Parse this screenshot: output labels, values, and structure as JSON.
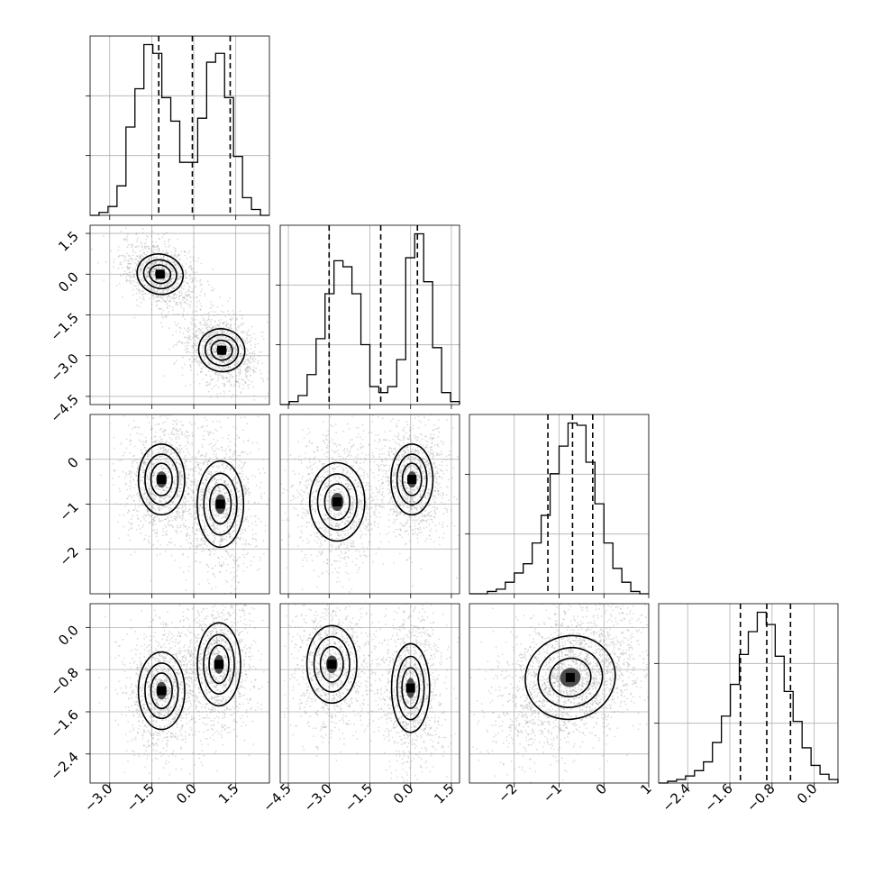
{
  "chart_data": {
    "type": "corner",
    "params": [
      {
        "range": [
          -3.7,
          2.7
        ],
        "ticks": [
          -3.0,
          -1.5,
          0.0,
          1.5
        ],
        "tick_labels": [
          "−3.0",
          "−1.5",
          "0.0",
          "1.5"
        ],
        "quantiles": [
          -1.25,
          -0.05,
          1.3
        ],
        "hist": {
          "edges": [
            -3.7,
            -3.38,
            -3.06,
            -2.74,
            -2.42,
            -2.1,
            -1.78,
            -1.46,
            -1.14,
            -0.82,
            -0.5,
            -0.18,
            0.14,
            0.46,
            0.78,
            1.1,
            1.42,
            1.74,
            2.06,
            2.38,
            2.7
          ],
          "counts": [
            0,
            1,
            3,
            10,
            30,
            43,
            58,
            55,
            40,
            32,
            18,
            18,
            33,
            52,
            55,
            40,
            20,
            6,
            2,
            0
          ]
        }
      },
      {
        "range": [
          -4.8,
          1.8
        ],
        "ticks": [
          -4.5,
          -3.0,
          -1.5,
          0.0,
          1.5
        ],
        "tick_labels": [
          "−4.5",
          "−3.0",
          "−1.5",
          "0.0",
          "1.5"
        ],
        "quantiles": [
          -3.0,
          -1.1,
          0.25
        ],
        "hist": {
          "edges": [
            -4.8,
            -4.47,
            -4.14,
            -3.81,
            -3.48,
            -3.15,
            -2.82,
            -2.49,
            -2.16,
            -1.83,
            -1.5,
            -1.17,
            -0.84,
            -0.51,
            -0.18,
            0.15,
            0.48,
            0.81,
            1.14,
            1.47,
            1.8
          ],
          "counts": [
            0,
            1,
            3,
            10,
            22,
            37,
            48,
            46,
            37,
            20,
            6,
            4,
            6,
            15,
            49,
            57,
            41,
            19,
            4,
            1
          ]
        }
      },
      {
        "range": [
          -3.0,
          1.0
        ],
        "ticks": [
          -2,
          -1,
          0
        ],
        "tick_labels": [
          "−2",
          "−1",
          "0"
        ],
        "x_ticks": [
          -2,
          -1,
          0,
          1
        ],
        "x_tick_labels": [
          "−2",
          "−1",
          "0",
          "1"
        ],
        "quantiles": [
          -1.25,
          -0.7,
          -0.25
        ],
        "hist": {
          "edges": [
            -3.0,
            -2.8,
            -2.6,
            -2.4,
            -2.2,
            -2.0,
            -1.8,
            -1.6,
            -1.4,
            -1.2,
            -1.0,
            -0.8,
            -0.6,
            -0.4,
            -0.2,
            0.0,
            0.2,
            0.4,
            0.6,
            0.8,
            1.0
          ],
          "counts": [
            0,
            0,
            1,
            2,
            5,
            9,
            13,
            22,
            34,
            52,
            64,
            74,
            73,
            57,
            39,
            22,
            11,
            5,
            1,
            0
          ]
        }
      },
      {
        "range": [
          -2.95,
          0.45
        ],
        "ticks": [
          -2.4,
          -1.6,
          -0.8,
          0.0
        ],
        "tick_labels": [
          "−2.4",
          "−1.6",
          "−0.8",
          "0.0"
        ],
        "quantiles": [
          -1.4,
          -0.9,
          -0.45
        ],
        "hist": {
          "edges": [
            -2.95,
            -2.78,
            -2.61,
            -2.44,
            -2.27,
            -2.1,
            -1.93,
            -1.76,
            -1.59,
            -1.42,
            -1.25,
            -1.08,
            -0.91,
            -0.74,
            -0.57,
            -0.4,
            -0.23,
            -0.06,
            0.11,
            0.28,
            0.45
          ],
          "counts": [
            0,
            1,
            2,
            4,
            7,
            12,
            23,
            38,
            56,
            73,
            86,
            97,
            90,
            72,
            52,
            35,
            20,
            10,
            5,
            2
          ]
        }
      }
    ],
    "pairs": [
      {
        "row": 1,
        "col": 0,
        "modes": [
          {
            "x": -1.2,
            "y": 0.0,
            "sx": 0.45,
            "sy": 0.42,
            "rho": -0.3
          },
          {
            "x": 1.0,
            "y": -2.8,
            "sx": 0.45,
            "sy": 0.45,
            "rho": -0.3
          }
        ]
      },
      {
        "row": 2,
        "col": 0,
        "modes": [
          {
            "x": -1.15,
            "y": -0.45,
            "sx": 0.45,
            "sy": 0.45,
            "rho": 0.0
          },
          {
            "x": 0.95,
            "y": -1.0,
            "sx": 0.45,
            "sy": 0.55,
            "rho": 0.0
          }
        ]
      },
      {
        "row": 2,
        "col": 1,
        "modes": [
          {
            "x": -2.7,
            "y": -0.95,
            "sx": 0.55,
            "sy": 0.5,
            "rho": 0.0
          },
          {
            "x": 0.05,
            "y": -0.45,
            "sx": 0.42,
            "sy": 0.45,
            "rho": 0.0
          }
        ]
      },
      {
        "row": 3,
        "col": 0,
        "modes": [
          {
            "x": -1.15,
            "y": -1.2,
            "sx": 0.45,
            "sy": 0.42,
            "rho": 0.0
          },
          {
            "x": 0.9,
            "y": -0.7,
            "sx": 0.42,
            "sy": 0.45,
            "rho": 0.0
          }
        ]
      },
      {
        "row": 3,
        "col": 1,
        "modes": [
          {
            "x": -2.9,
            "y": -0.7,
            "sx": 0.5,
            "sy": 0.42,
            "rho": 0.0
          },
          {
            "x": 0.0,
            "y": -1.15,
            "sx": 0.38,
            "sy": 0.48,
            "rho": 0.0
          }
        ]
      },
      {
        "row": 3,
        "col": 2,
        "modes": [
          {
            "x": -0.75,
            "y": -0.95,
            "sx": 0.55,
            "sy": 0.45,
            "rho": 0.35
          }
        ]
      }
    ],
    "grid": true,
    "legend": "none",
    "colors": {
      "points": "#9a9a9a",
      "lines": "#000000",
      "grid": "#b0b0b0"
    }
  }
}
